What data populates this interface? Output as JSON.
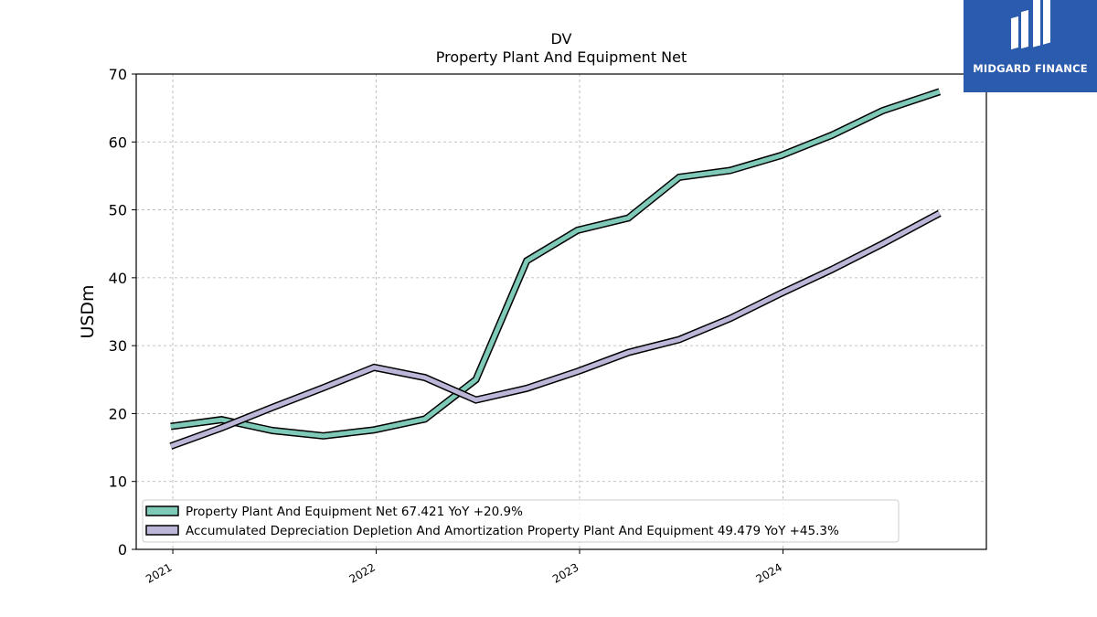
{
  "chart_data": {
    "type": "line",
    "title": "DV",
    "subtitle": "Property Plant And Equipment Net",
    "ylabel": "USDm",
    "xlabel": "",
    "ylim": [
      0,
      70
    ],
    "yticks": [
      0,
      10,
      20,
      30,
      40,
      50,
      60,
      70
    ],
    "xlim": [
      2020.82,
      2025.0
    ],
    "xticks": [
      {
        "value": 2021,
        "label": "2021"
      },
      {
        "value": 2022,
        "label": "2022"
      },
      {
        "value": 2023,
        "label": "2023"
      },
      {
        "value": 2024,
        "label": "2024"
      }
    ],
    "grid": true,
    "legend_position": "bottom-left",
    "series": [
      {
        "name": "Property Plant And Equipment Net",
        "legend": "Property Plant And Equipment Net  67.421 YoY +20.9%",
        "color": "#7fc9b8",
        "points": [
          [
            2020.99,
            18.1
          ],
          [
            2021.24,
            19.1
          ],
          [
            2021.49,
            17.5
          ],
          [
            2021.74,
            16.7
          ],
          [
            2021.99,
            17.6
          ],
          [
            2022.24,
            19.2
          ],
          [
            2022.49,
            25.0
          ],
          [
            2022.74,
            42.5
          ],
          [
            2022.99,
            47.0
          ],
          [
            2023.24,
            48.8
          ],
          [
            2023.49,
            54.8
          ],
          [
            2023.74,
            55.8
          ],
          [
            2023.99,
            58.0
          ],
          [
            2024.24,
            61.0
          ],
          [
            2024.49,
            64.6
          ],
          [
            2024.77,
            67.4
          ]
        ]
      },
      {
        "name": "Accumulated Depreciation Depletion And Amortization Property Plant And Equipment",
        "legend": "Accumulated Depreciation Depletion And Amortization Property Plant And Equipment  49.479 YoY +45.3%",
        "color": "#bcb7d8",
        "points": [
          [
            2020.99,
            15.2
          ],
          [
            2021.24,
            17.9
          ],
          [
            2021.49,
            20.9
          ],
          [
            2021.74,
            23.8
          ],
          [
            2021.99,
            26.8
          ],
          [
            2022.24,
            25.3
          ],
          [
            2022.49,
            22.0
          ],
          [
            2022.74,
            23.7
          ],
          [
            2022.99,
            26.2
          ],
          [
            2023.24,
            29.0
          ],
          [
            2023.49,
            30.9
          ],
          [
            2023.74,
            34.0
          ],
          [
            2023.99,
            37.7
          ],
          [
            2024.24,
            41.2
          ],
          [
            2024.49,
            45.0
          ],
          [
            2024.77,
            49.5
          ]
        ]
      }
    ]
  },
  "logo": {
    "text": "MIDGARD FINANCE"
  }
}
